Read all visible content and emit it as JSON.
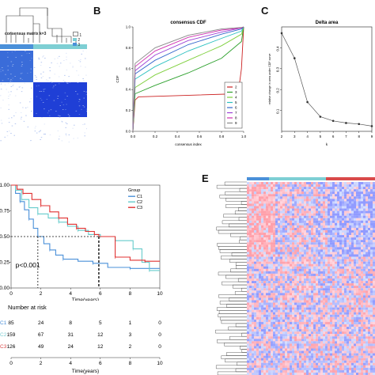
{
  "panel_labels": {
    "b": "B",
    "c": "C",
    "e": "E"
  },
  "colors": {
    "k1": "#4a90d9",
    "k2": "#7ecfd4",
    "k3": "#d94a4a",
    "heat_blue": "#1f3fd6",
    "heat_red": "#d6233f"
  },
  "consensus_matrix": {
    "title": "consensus matrix k=3",
    "legend": [
      "1",
      "2",
      "3"
    ]
  },
  "km_legend_title": "Group",
  "risk_table": {
    "title": "Number at risk",
    "times": [
      "0",
      "2",
      "4",
      "6",
      "8",
      "10"
    ],
    "rows": [
      {
        "label": "C1",
        "values": [
          "85",
          "24",
          "8",
          "5",
          "1",
          "0"
        ]
      },
      {
        "label": "C2",
        "values": [
          "159",
          "67",
          "31",
          "12",
          "3",
          "0"
        ]
      },
      {
        "label": "C3",
        "values": [
          "126",
          "49",
          "24",
          "12",
          "2",
          "0"
        ]
      }
    ]
  },
  "chart_data": [
    {
      "type": "line",
      "title": "consensus CDF",
      "xlabel": "consensus index",
      "ylabel": "CDF",
      "xlim": [
        0,
        1
      ],
      "ylim": [
        0,
        1
      ],
      "x_ticks": [
        "0.0",
        "0.2",
        "0.4",
        "0.6",
        "0.8",
        "1.0"
      ],
      "y_ticks": [
        "0.0",
        "0.2",
        "0.4",
        "0.6",
        "0.8",
        "1.0"
      ],
      "legend_position": "right",
      "series": [
        {
          "name": "2",
          "color": "#cc2222",
          "x": [
            0,
            0.02,
            0.05,
            0.95,
            0.98,
            1.0
          ],
          "y": [
            0.0,
            0.3,
            0.33,
            0.36,
            0.6,
            1.0
          ]
        },
        {
          "name": "3",
          "color": "#2ca02c",
          "x": [
            0,
            0.02,
            0.2,
            0.5,
            0.8,
            0.98,
            1.0
          ],
          "y": [
            0.0,
            0.36,
            0.44,
            0.56,
            0.7,
            0.86,
            1.0
          ]
        },
        {
          "name": "4",
          "color": "#7dcf3a",
          "x": [
            0,
            0.02,
            0.2,
            0.5,
            0.8,
            0.98,
            1.0
          ],
          "y": [
            0.0,
            0.42,
            0.54,
            0.68,
            0.82,
            0.93,
            1.0
          ]
        },
        {
          "name": "5",
          "color": "#2bc0c0",
          "x": [
            0,
            0.02,
            0.2,
            0.5,
            0.8,
            0.98,
            1.0
          ],
          "y": [
            0.0,
            0.5,
            0.62,
            0.77,
            0.89,
            0.96,
            1.0
          ]
        },
        {
          "name": "6",
          "color": "#3366cc",
          "x": [
            0,
            0.02,
            0.2,
            0.5,
            0.8,
            0.98,
            1.0
          ],
          "y": [
            0.0,
            0.55,
            0.68,
            0.83,
            0.93,
            0.98,
            1.0
          ]
        },
        {
          "name": "7",
          "color": "#9b3fd6",
          "x": [
            0,
            0.02,
            0.2,
            0.5,
            0.8,
            0.98,
            1.0
          ],
          "y": [
            0.0,
            0.58,
            0.73,
            0.87,
            0.95,
            0.99,
            1.0
          ]
        },
        {
          "name": "8",
          "color": "#cf2fb0",
          "x": [
            0,
            0.02,
            0.2,
            0.5,
            0.8,
            0.98,
            1.0
          ],
          "y": [
            0.0,
            0.62,
            0.77,
            0.9,
            0.97,
            0.99,
            1.0
          ]
        },
        {
          "name": "9",
          "color": "#888888",
          "x": [
            0,
            0.02,
            0.2,
            0.5,
            0.8,
            0.98,
            1.0
          ],
          "y": [
            0.0,
            0.65,
            0.8,
            0.92,
            0.98,
            0.995,
            1.0
          ]
        }
      ]
    },
    {
      "type": "line",
      "title": "Delta area",
      "xlabel": "k",
      "ylabel": "relative change in area under CDF curve",
      "xlim": [
        2,
        9
      ],
      "ylim": [
        0,
        0.5
      ],
      "x_ticks": [
        "2",
        "3",
        "4",
        "5",
        "6",
        "7",
        "8",
        "9"
      ],
      "y_ticks": [
        "0.1",
        "0.2",
        "0.3",
        "0.4"
      ],
      "series": [
        {
          "name": "",
          "color": "#555555",
          "x": [
            2,
            3,
            4,
            5,
            6,
            7,
            8,
            9
          ],
          "y": [
            0.47,
            0.35,
            0.14,
            0.07,
            0.05,
            0.04,
            0.035,
            0.025
          ]
        }
      ]
    },
    {
      "type": "line",
      "title": "",
      "xlabel": "Time(years)",
      "ylabel": "",
      "xlim": [
        0,
        10
      ],
      "ylim": [
        0,
        1
      ],
      "x_ticks": [
        "0",
        "2",
        "4",
        "6",
        "8",
        "10"
      ],
      "y_ticks": [
        "0.00",
        "0.25",
        "0.50",
        "0.75",
        "1.00"
      ],
      "legend_position": "right",
      "annotation": "p<0.001",
      "median_survival": {
        "C1": 1.8,
        "C3": 5.9
      },
      "series": [
        {
          "name": "C1",
          "color": "#4a90d9",
          "x": [
            0,
            0.3,
            0.6,
            0.9,
            1.2,
            1.5,
            1.8,
            2.2,
            2.6,
            3.0,
            3.5,
            4.5,
            5.5,
            6.5,
            8.0,
            10.0
          ],
          "y": [
            1.0,
            0.92,
            0.84,
            0.76,
            0.67,
            0.58,
            0.5,
            0.43,
            0.37,
            0.32,
            0.28,
            0.26,
            0.24,
            0.2,
            0.19,
            0.19
          ]
        },
        {
          "name": "C2",
          "color": "#66cccc",
          "x": [
            0,
            0.3,
            0.7,
            1.2,
            1.8,
            2.5,
            3.2,
            3.8,
            4.5,
            5.2,
            6.0,
            7.0,
            8.2,
            8.8,
            9.3,
            10.0
          ],
          "y": [
            1.0,
            0.95,
            0.86,
            0.78,
            0.72,
            0.68,
            0.64,
            0.6,
            0.56,
            0.52,
            0.5,
            0.46,
            0.38,
            0.25,
            0.17,
            0.17
          ]
        },
        {
          "name": "C3",
          "color": "#e03030",
          "x": [
            0,
            0.4,
            0.8,
            1.4,
            2.0,
            2.6,
            3.2,
            3.8,
            4.4,
            5.0,
            5.6,
            5.9,
            7.0,
            8.0,
            9.0,
            10.0
          ],
          "y": [
            1.0,
            0.96,
            0.92,
            0.86,
            0.8,
            0.74,
            0.68,
            0.62,
            0.58,
            0.55,
            0.52,
            0.5,
            0.3,
            0.27,
            0.26,
            0.26
          ]
        }
      ]
    }
  ]
}
